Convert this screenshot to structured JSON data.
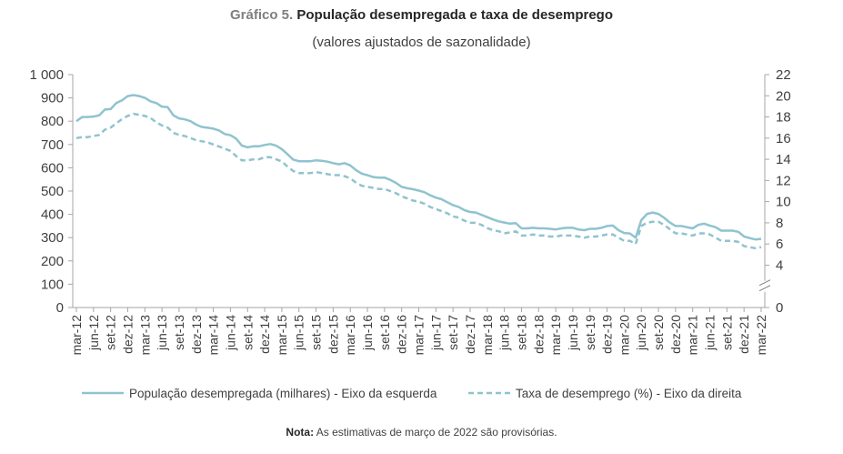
{
  "title_prefix": "Gráfico 5.",
  "title": "População desempregada e taxa de desemprego",
  "subtitle": "(valores ajustados de sazonalidade)",
  "note_label": "Nota:",
  "note_text": "As estimativas de março de 2022 são provisórias.",
  "chart_data": {
    "type": "line",
    "x": [
      "mar-12",
      "abr-12",
      "mai-12",
      "jun-12",
      "jul-12",
      "ago-12",
      "set-12",
      "out-12",
      "nov-12",
      "dez-12",
      "jan-13",
      "fev-13",
      "mar-13",
      "abr-13",
      "mai-13",
      "jun-13",
      "jul-13",
      "ago-13",
      "set-13",
      "out-13",
      "nov-13",
      "dez-13",
      "jan-14",
      "fev-14",
      "mar-14",
      "abr-14",
      "mai-14",
      "jun-14",
      "jul-14",
      "ago-14",
      "set-14",
      "out-14",
      "nov-14",
      "dez-14",
      "jan-15",
      "fev-15",
      "mar-15",
      "abr-15",
      "mai-15",
      "jun-15",
      "jul-15",
      "ago-15",
      "set-15",
      "out-15",
      "nov-15",
      "dez-15",
      "jan-16",
      "fev-16",
      "mar-16",
      "abr-16",
      "mai-16",
      "jun-16",
      "jul-16",
      "ago-16",
      "set-16",
      "out-16",
      "nov-16",
      "dez-16",
      "jan-17",
      "fev-17",
      "mar-17",
      "abr-17",
      "mai-17",
      "jun-17",
      "jul-17",
      "ago-17",
      "set-17",
      "out-17",
      "nov-17",
      "dez-17",
      "jan-18",
      "fev-18",
      "mar-18",
      "abr-18",
      "mai-18",
      "jun-18",
      "jul-18",
      "ago-18",
      "set-18",
      "out-18",
      "nov-18",
      "dez-18",
      "jan-19",
      "fev-19",
      "mar-19",
      "abr-19",
      "mai-19",
      "jun-19",
      "jul-19",
      "ago-19",
      "set-19",
      "out-19",
      "nov-19",
      "dez-19",
      "jan-20",
      "fev-20",
      "mar-20",
      "abr-20",
      "mai-20",
      "jun-20",
      "jul-20",
      "ago-20",
      "set-20",
      "out-20",
      "nov-20",
      "dez-20",
      "jan-21",
      "fev-21",
      "mar-21",
      "abr-21",
      "mai-21",
      "jun-21",
      "jul-21",
      "ago-21",
      "set-21",
      "out-21",
      "nov-21",
      "dez-21",
      "jan-22",
      "fev-22",
      "mar-22"
    ],
    "x_tick_labels": [
      "mar-12",
      "jun-12",
      "set-12",
      "dez-12",
      "mar-13",
      "jun-13",
      "set-13",
      "dez-13",
      "mar-14",
      "jun-14",
      "set-14",
      "dez-14",
      "mar-15",
      "jun-15",
      "set-15",
      "dez-15",
      "mar-16",
      "jun-16",
      "set-16",
      "dez-16",
      "mar-17",
      "jun-17",
      "set-17",
      "dez-17",
      "mar-18",
      "jun-18",
      "set-18",
      "dez-18",
      "mar-19",
      "jun-19",
      "set-19",
      "dez-19",
      "mar-20",
      "jun-20",
      "set-20",
      "dez-20",
      "mar-21",
      "jun-21",
      "set-21",
      "dez-21",
      "mar-22"
    ],
    "y_left": {
      "min": 0,
      "max": 1000,
      "step": 100,
      "tick_labels": [
        "0",
        "100",
        "200",
        "300",
        "400",
        "500",
        "600",
        "700",
        "800",
        "900",
        "1 000"
      ]
    },
    "y_right": {
      "min": 0,
      "max": 22,
      "tick_values": [
        0,
        4,
        6,
        8,
        10,
        12,
        14,
        16,
        18,
        20,
        22
      ],
      "tick_labels": [
        "0",
        "4",
        "6",
        "8",
        "10",
        "12",
        "14",
        "16",
        "18",
        "20",
        "22"
      ],
      "axis_break": true
    },
    "grid": false,
    "legend_position": "bottom",
    "series": [
      {
        "name": "População desempregada (milhares) - Eixo da esquerda",
        "axis": "left",
        "style": "solid",
        "color": "#8fc3cf",
        "values": [
          800,
          818,
          818,
          820,
          825,
          850,
          852,
          878,
          890,
          908,
          912,
          908,
          900,
          885,
          878,
          862,
          860,
          825,
          812,
          808,
          800,
          785,
          775,
          772,
          768,
          760,
          745,
          740,
          725,
          695,
          688,
          692,
          692,
          698,
          702,
          695,
          680,
          658,
          635,
          628,
          628,
          628,
          632,
          630,
          626,
          620,
          615,
          620,
          610,
          590,
          575,
          568,
          560,
          558,
          558,
          548,
          535,
          518,
          512,
          508,
          502,
          495,
          482,
          472,
          465,
          452,
          440,
          432,
          418,
          410,
          408,
          398,
          388,
          378,
          370,
          365,
          360,
          362,
          340,
          340,
          342,
          340,
          340,
          338,
          335,
          340,
          342,
          342,
          335,
          332,
          338,
          338,
          342,
          350,
          352,
          332,
          320,
          318,
          300,
          375,
          402,
          408,
          402,
          385,
          365,
          350,
          350,
          345,
          340,
          355,
          360,
          352,
          345,
          330,
          330,
          330,
          325,
          305,
          298,
          292,
          295
        ]
      },
      {
        "name": "Taxa de desemprego (%) - Eixo da direita",
        "axis": "right",
        "style": "dashed",
        "color": "#8fc3cf",
        "values": [
          16.0,
          16.1,
          16.1,
          16.2,
          16.3,
          16.8,
          17.0,
          17.4,
          17.8,
          18.1,
          18.3,
          18.2,
          18.1,
          17.9,
          17.5,
          17.2,
          17.0,
          16.5,
          16.3,
          16.2,
          16.0,
          15.8,
          15.7,
          15.6,
          15.4,
          15.2,
          15.0,
          14.8,
          14.3,
          13.9,
          13.9,
          14.0,
          14.0,
          14.2,
          14.2,
          14.0,
          13.8,
          13.3,
          12.9,
          12.7,
          12.7,
          12.7,
          12.8,
          12.7,
          12.6,
          12.5,
          12.5,
          12.4,
          12.2,
          11.8,
          11.5,
          11.4,
          11.3,
          11.2,
          11.2,
          11.0,
          10.8,
          10.5,
          10.3,
          10.1,
          10.0,
          9.8,
          9.5,
          9.3,
          9.1,
          8.9,
          8.6,
          8.5,
          8.2,
          8.0,
          8.0,
          7.8,
          7.5,
          7.3,
          7.2,
          7.0,
          7.1,
          7.2,
          6.8,
          6.8,
          6.9,
          6.8,
          6.8,
          6.7,
          6.7,
          6.8,
          6.8,
          6.8,
          6.7,
          6.6,
          6.7,
          6.7,
          6.8,
          6.9,
          6.9,
          6.6,
          6.3,
          6.3,
          6.0,
          7.7,
          8.0,
          8.1,
          8.1,
          7.8,
          7.4,
          7.0,
          7.0,
          6.9,
          6.8,
          7.0,
          7.0,
          6.9,
          6.6,
          6.3,
          6.3,
          6.3,
          6.2,
          5.8,
          5.7,
          5.6,
          5.7
        ]
      }
    ]
  }
}
